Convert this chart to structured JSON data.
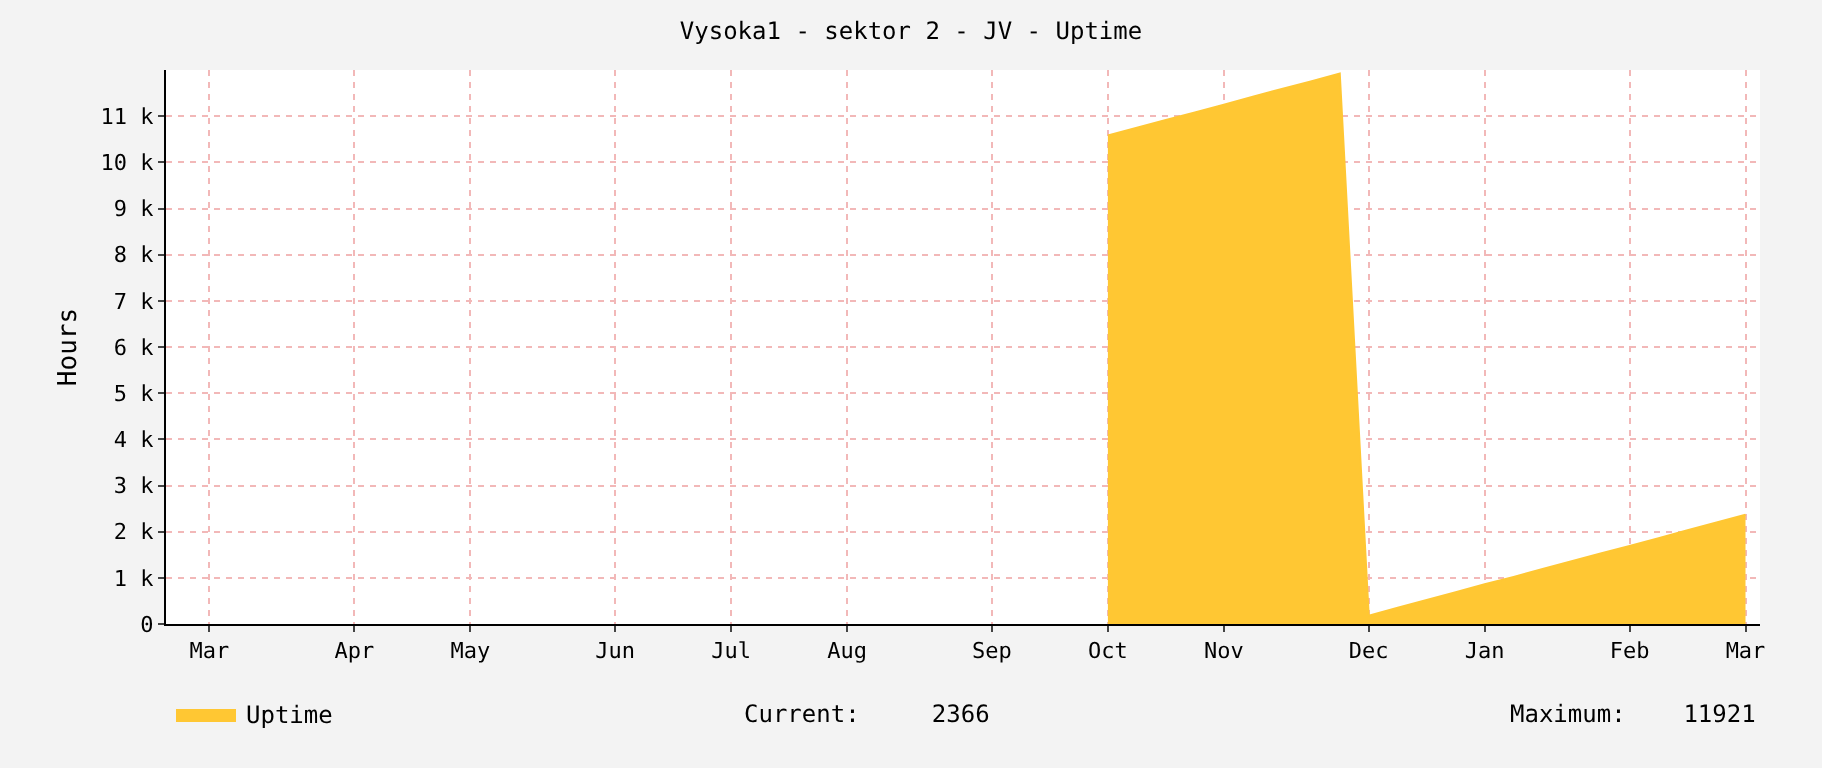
{
  "chart_data": {
    "type": "area",
    "title": "Vysoka1 - sektor 2 - JV - Uptime",
    "ylabel": "Hours",
    "categories": [
      null,
      "Mar",
      null,
      null,
      null,
      null,
      "Apr",
      null,
      null,
      null,
      "May",
      null,
      null,
      null,
      null,
      "Jun",
      null,
      null,
      null,
      "Jul",
      null,
      null,
      null,
      "Aug",
      null,
      null,
      null,
      null,
      "Sep",
      null,
      null,
      null,
      "Oct",
      null,
      null,
      null,
      "Nov",
      null,
      null,
      null,
      null,
      "Dec",
      null,
      null,
      null,
      "Jan",
      null,
      null,
      null,
      null,
      "Feb",
      null,
      null,
      null,
      "Mar"
    ],
    "ylim": [
      0,
      12000
    ],
    "yticks": [
      {
        "value": 0,
        "label": "0"
      },
      {
        "value": 1000,
        "label": "1 k"
      },
      {
        "value": 2000,
        "label": "2 k"
      },
      {
        "value": 3000,
        "label": "3 k"
      },
      {
        "value": 4000,
        "label": "4 k"
      },
      {
        "value": 5000,
        "label": "5 k"
      },
      {
        "value": 6000,
        "label": "6 k"
      },
      {
        "value": 7000,
        "label": "7 k"
      },
      {
        "value": 8000,
        "label": "8 k"
      },
      {
        "value": 9000,
        "label": "9 k"
      },
      {
        "value": 10000,
        "label": "10 k"
      },
      {
        "value": 11000,
        "label": "11 k"
      }
    ],
    "series": [
      {
        "name": "Uptime",
        "color": "#ffc733",
        "values": [
          null,
          null,
          null,
          null,
          null,
          null,
          null,
          null,
          null,
          null,
          null,
          null,
          null,
          null,
          null,
          null,
          null,
          null,
          null,
          null,
          null,
          null,
          null,
          null,
          null,
          null,
          null,
          null,
          null,
          null,
          null,
          null,
          10580,
          10750,
          10920,
          11080,
          11250,
          11420,
          11590,
          11750,
          11921,
          180,
          350,
          520,
          690,
          860,
          1020,
          1190,
          1360,
          1530,
          1690,
          1860,
          2030,
          2200,
          2366
        ]
      }
    ],
    "annotations": [
      "Current:     2366",
      "Maximum:    11921"
    ],
    "grid": true,
    "legend": "bottom left"
  }
}
